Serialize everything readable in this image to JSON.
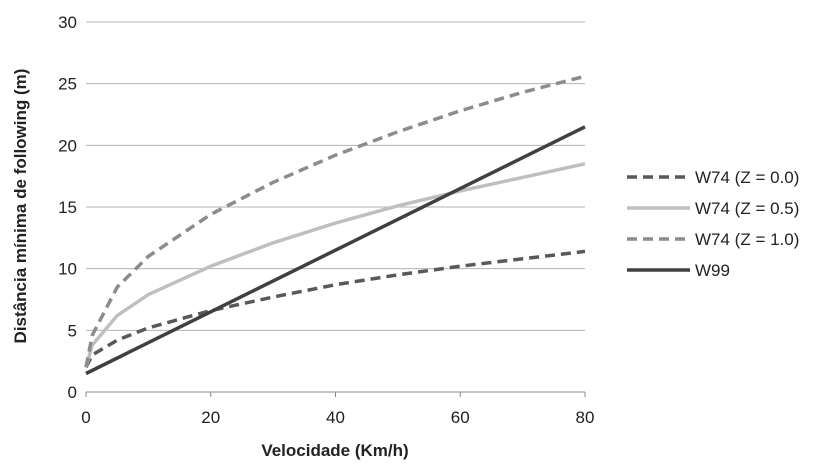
{
  "chart_data": {
    "type": "line",
    "title": "",
    "xlabel": "Velocidade (Km/h)",
    "ylabel": "Distância mínima de following (m)",
    "xlim": [
      0,
      80
    ],
    "ylim": [
      0,
      30
    ],
    "xticks": [
      0,
      20,
      40,
      60,
      80
    ],
    "yticks": [
      0,
      5,
      10,
      15,
      20,
      25,
      30
    ],
    "grid": "horizontal",
    "legend_position": "right",
    "series": [
      {
        "name": "W74 (Z = 0.0)",
        "color": "#595959",
        "dash": "dashed",
        "x": [
          0,
          1,
          5,
          10,
          20,
          30,
          40,
          50,
          60,
          70,
          80
        ],
        "y": [
          2.0,
          3.0,
          4.2,
          5.2,
          6.6,
          7.7,
          8.7,
          9.5,
          10.2,
          10.8,
          11.4
        ]
      },
      {
        "name": "W74 (Z = 0.5)",
        "color": "#bfbfbf",
        "dash": "solid",
        "x": [
          0,
          1,
          5,
          10,
          20,
          30,
          40,
          50,
          60,
          70,
          80
        ],
        "y": [
          2.0,
          3.8,
          6.2,
          7.9,
          10.2,
          12.1,
          13.7,
          15.1,
          16.3,
          17.4,
          18.5
        ]
      },
      {
        "name": "W74 (Z = 1.0)",
        "color": "#8c8c8c",
        "dash": "dashed",
        "x": [
          0,
          1,
          5,
          10,
          20,
          30,
          40,
          50,
          60,
          70,
          80
        ],
        "y": [
          2.0,
          4.6,
          8.5,
          11.0,
          14.4,
          17.0,
          19.2,
          21.1,
          22.8,
          24.3,
          25.6
        ]
      },
      {
        "name": "W99",
        "color": "#404040",
        "dash": "solid",
        "x": [
          0,
          80
        ],
        "y": [
          1.5,
          21.5
        ]
      }
    ]
  }
}
